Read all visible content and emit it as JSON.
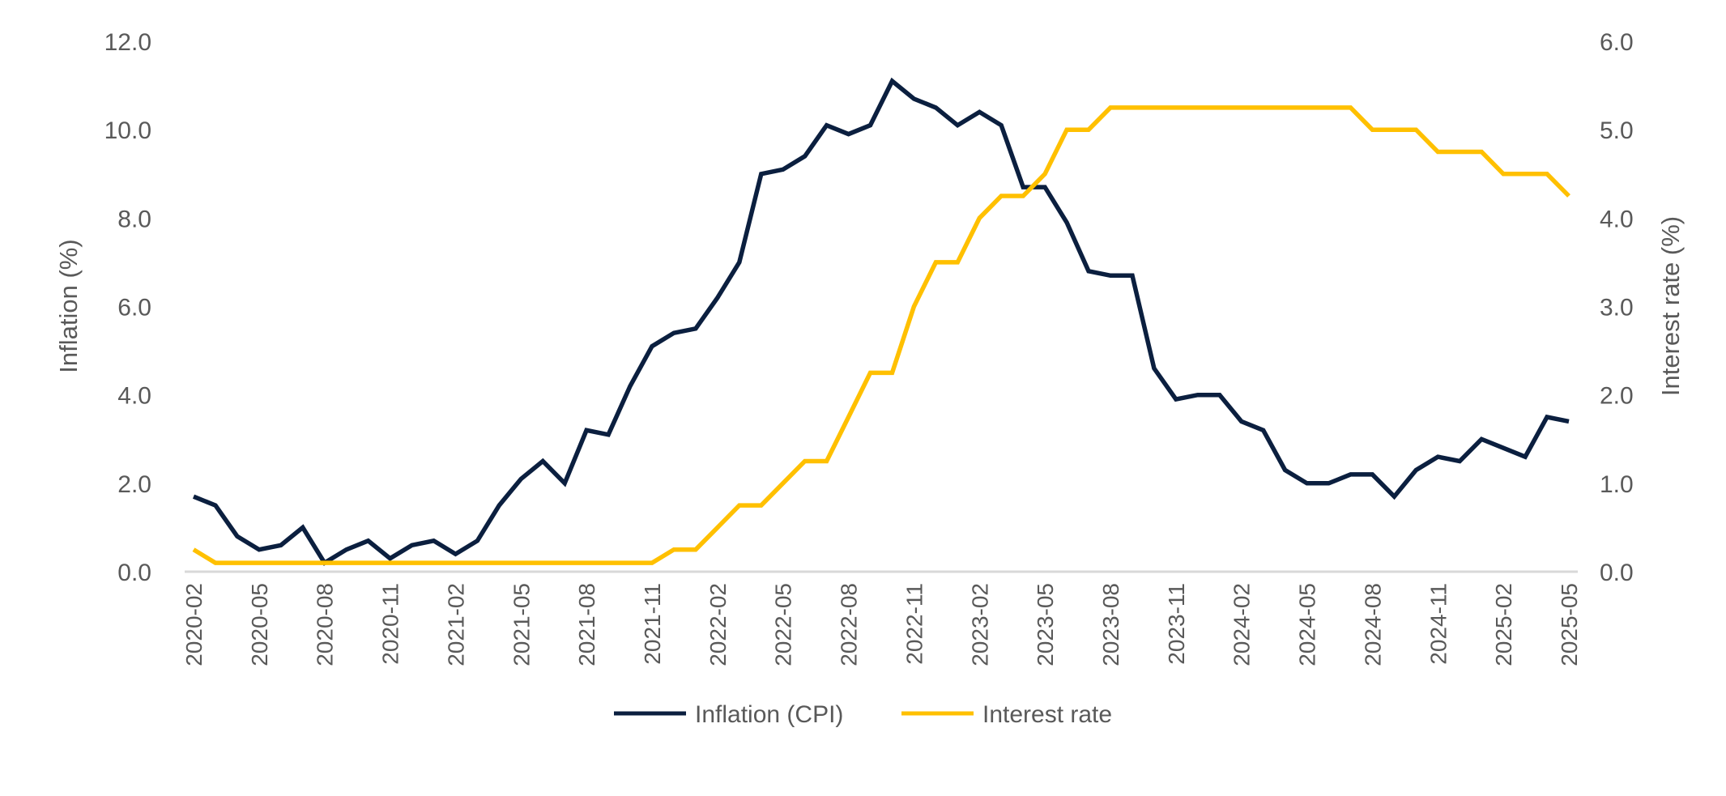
{
  "chart_data": {
    "type": "line",
    "title": "",
    "xlabel": "",
    "ylabel": "Inflation (%)",
    "y2label": "Interest rate (%)",
    "ylim": [
      0,
      12
    ],
    "y2lim": [
      0,
      6
    ],
    "yticks": [
      "0.0",
      "2.0",
      "4.0",
      "6.0",
      "8.0",
      "10.0",
      "12.0"
    ],
    "y2ticks": [
      "0.0",
      "1.0",
      "2.0",
      "3.0",
      "4.0",
      "5.0",
      "6.0"
    ],
    "grid": false,
    "legend": "bottom",
    "x": [
      "2020-02",
      "2020-03",
      "2020-04",
      "2020-05",
      "2020-06",
      "2020-07",
      "2020-08",
      "2020-09",
      "2020-10",
      "2020-11",
      "2020-12",
      "2021-01",
      "2021-02",
      "2021-03",
      "2021-04",
      "2021-05",
      "2021-06",
      "2021-07",
      "2021-08",
      "2021-09",
      "2021-10",
      "2021-11",
      "2021-12",
      "2022-01",
      "2022-02",
      "2022-03",
      "2022-04",
      "2022-05",
      "2022-06",
      "2022-07",
      "2022-08",
      "2022-09",
      "2022-10",
      "2022-11",
      "2022-12",
      "2023-01",
      "2023-02",
      "2023-03",
      "2023-04",
      "2023-05",
      "2023-06",
      "2023-07",
      "2023-08",
      "2023-09",
      "2023-10",
      "2023-11",
      "2023-12",
      "2024-01",
      "2024-02",
      "2024-03",
      "2024-04",
      "2024-05",
      "2024-06",
      "2024-07",
      "2024-08",
      "2024-09",
      "2024-10",
      "2024-11",
      "2024-12",
      "2025-01",
      "2025-02",
      "2025-03",
      "2025-04",
      "2025-05"
    ],
    "xticks": [
      "2020-02",
      "2020-05",
      "2020-08",
      "2020-11",
      "2021-02",
      "2021-05",
      "2021-08",
      "2021-11",
      "2022-02",
      "2022-05",
      "2022-08",
      "2022-11",
      "2023-02",
      "2023-05",
      "2023-08",
      "2023-11",
      "2024-02",
      "2024-05",
      "2024-08",
      "2024-11",
      "2025-02",
      "2025-05"
    ],
    "series": [
      {
        "name": "Inflation (CPI)",
        "axis": "left",
        "color": "#0b1f3f",
        "values": [
          1.7,
          1.5,
          0.8,
          0.5,
          0.6,
          1.0,
          0.2,
          0.5,
          0.7,
          0.3,
          0.6,
          0.7,
          0.4,
          0.7,
          1.5,
          2.1,
          2.5,
          2.0,
          3.2,
          3.1,
          4.2,
          5.1,
          5.4,
          5.5,
          6.2,
          7.0,
          9.0,
          9.1,
          9.4,
          10.1,
          9.9,
          10.1,
          11.1,
          10.7,
          10.5,
          10.1,
          10.4,
          10.1,
          8.7,
          8.7,
          7.9,
          6.8,
          6.7,
          6.7,
          4.6,
          3.9,
          4.0,
          4.0,
          3.4,
          3.2,
          2.3,
          2.0,
          2.0,
          2.2,
          2.2,
          1.7,
          2.3,
          2.6,
          2.5,
          3.0,
          2.8,
          2.6,
          3.5,
          3.4
        ]
      },
      {
        "name": "Interest rate",
        "axis": "right",
        "color": "#FFC000",
        "values": [
          0.25,
          0.1,
          0.1,
          0.1,
          0.1,
          0.1,
          0.1,
          0.1,
          0.1,
          0.1,
          0.1,
          0.1,
          0.1,
          0.1,
          0.1,
          0.1,
          0.1,
          0.1,
          0.1,
          0.1,
          0.1,
          0.1,
          0.25,
          0.25,
          0.5,
          0.75,
          0.75,
          1.0,
          1.25,
          1.25,
          1.75,
          2.25,
          2.25,
          3.0,
          3.5,
          3.5,
          4.0,
          4.25,
          4.25,
          4.5,
          5.0,
          5.0,
          5.25,
          5.25,
          5.25,
          5.25,
          5.25,
          5.25,
          5.25,
          5.25,
          5.25,
          5.25,
          5.25,
          5.25,
          5.0,
          5.0,
          5.0,
          4.75,
          4.75,
          4.75,
          4.5,
          4.5,
          4.5,
          4.25
        ]
      }
    ]
  }
}
